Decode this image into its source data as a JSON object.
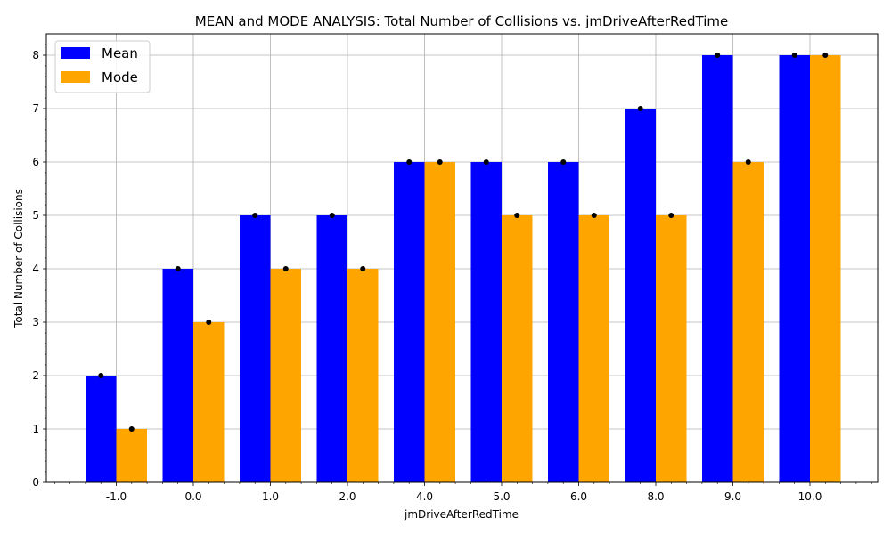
{
  "chart_data": {
    "type": "bar",
    "title": "MEAN and MODE ANALYSIS: Total Number of Collisions vs. jmDriveAfterRedTime",
    "xlabel": "jmDriveAfterRedTime",
    "ylabel": "Total Number of Collisions",
    "categories": [
      "-1.0",
      "0.0",
      "1.0",
      "2.0",
      "4.0",
      "5.0",
      "6.0",
      "8.0",
      "9.0",
      "10.0"
    ],
    "series": [
      {
        "name": "Mean",
        "color": "#0000ff",
        "values": [
          2,
          4,
          5,
          5,
          6,
          6,
          6,
          7,
          8,
          8
        ]
      },
      {
        "name": "Mode",
        "color": "#ffa500",
        "values": [
          1,
          3,
          4,
          4,
          6,
          5,
          5,
          5,
          6,
          8
        ]
      }
    ],
    "ylim": [
      0,
      8.4
    ],
    "yticks": [
      "0",
      "1",
      "2",
      "3",
      "4",
      "5",
      "6",
      "7",
      "8"
    ],
    "grid": true,
    "legend_position": "top-left",
    "marker_color": "#000000"
  }
}
